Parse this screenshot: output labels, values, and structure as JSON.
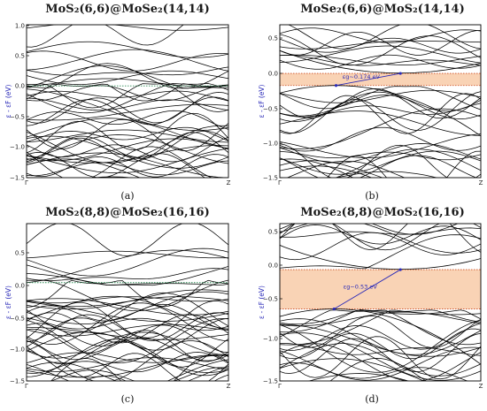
{
  "colors": {
    "band_line": "#000000",
    "fermi": "#2e8b57",
    "gap_fill": "#f9d3b5",
    "gap_edge": "#cc4a1c",
    "arrow": "#2a2ab8"
  },
  "panels": [
    {
      "title": "MoS₂(6,6)@MoSe₂(14,14)",
      "sublabel": "(a)",
      "ylabel": "ε - εF (eV)",
      "yticks": [
        "1.0",
        "0.5",
        "0.0",
        "−0.5",
        "−1.0",
        "−1.5"
      ],
      "xticks": [
        "Γ",
        "Z"
      ],
      "gap_label": ""
    },
    {
      "title": "MoSe₂(6,6)@MoS₂(14,14)",
      "sublabel": "(b)",
      "ylabel": "ε - εF (eV)",
      "yticks": [
        "0.5",
        "0.0",
        "−0.5",
        "−1.0",
        "−1.5"
      ],
      "xticks": [
        "Γ",
        "Z"
      ],
      "gap_label": "εg~0.174 eV"
    },
    {
      "title": "MoS₂(8,8)@MoSe₂(16,16)",
      "sublabel": "(c)",
      "ylabel": "ε - εF (eV)",
      "yticks": [
        "0.5",
        "0.0",
        "−0.5",
        "−1.0",
        "−1.5"
      ],
      "xticks": [
        "Γ",
        "Z"
      ],
      "gap_label": ""
    },
    {
      "title": "MoSe₂(8,8)@MoS₂(16,16)",
      "sublabel": "(d)",
      "ylabel": "ε - εF (eV)",
      "yticks": [
        "0.5",
        "0.0",
        "−0.5",
        "−1.0",
        "−1.5"
      ],
      "xticks": [
        "Γ",
        "Z"
      ],
      "gap_label": "εg~0.53 eV"
    }
  ],
  "chart_data": [
    {
      "type": "line",
      "title": "MoS₂(6,6)@MoSe₂(14,14)",
      "xlabel": "",
      "ylabel": "ε - εF (eV)",
      "ylim": [
        -1.5,
        1.0
      ],
      "x_ticks": [
        "Γ",
        "Z"
      ],
      "fermi_level": 0.0,
      "band_gap_eV": 0,
      "metallic": true,
      "band_count_above": 10,
      "band_count_below": 32
    },
    {
      "type": "line",
      "title": "MoSe₂(6,6)@MoS₂(14,14)",
      "xlabel": "",
      "ylabel": "ε - εF (eV)",
      "ylim": [
        -1.5,
        0.7
      ],
      "x_ticks": [
        "Γ",
        "Z"
      ],
      "fermi_level": 0.0,
      "band_gap_eV": 0.174,
      "gap_region": [
        -0.174,
        0.0
      ],
      "cbm": {
        "x": 0.6,
        "y": 0.0
      },
      "vbm": {
        "x": 0.28,
        "y": -0.174
      },
      "band_count_above": 10,
      "band_count_below": 24
    },
    {
      "type": "line",
      "title": "MoS₂(8,8)@MoSe₂(16,16)",
      "xlabel": "",
      "ylabel": "ε - εF (eV)",
      "ylim": [
        -1.5,
        0.9
      ],
      "x_ticks": [
        "Γ",
        "Z"
      ],
      "fermi_level": 0.0,
      "band_gap_eV": 0,
      "metallic": true,
      "band_count_above": 7,
      "band_count_below": 38
    },
    {
      "type": "line",
      "title": "MoSe₂(8,8)@MoS₂(16,16)",
      "xlabel": "",
      "ylabel": "ε - εF (eV)",
      "ylim": [
        -1.5,
        0.62
      ],
      "x_ticks": [
        "Γ",
        "Z"
      ],
      "fermi_level": 0.0,
      "band_gap_eV": 0.53,
      "gap_region": [
        -0.53,
        0.0
      ],
      "cbm": {
        "x": 0.6,
        "y": 0.0
      },
      "vbm": {
        "x": 0.27,
        "y": -0.53
      },
      "band_count_above": 8,
      "band_count_below": 22
    }
  ]
}
